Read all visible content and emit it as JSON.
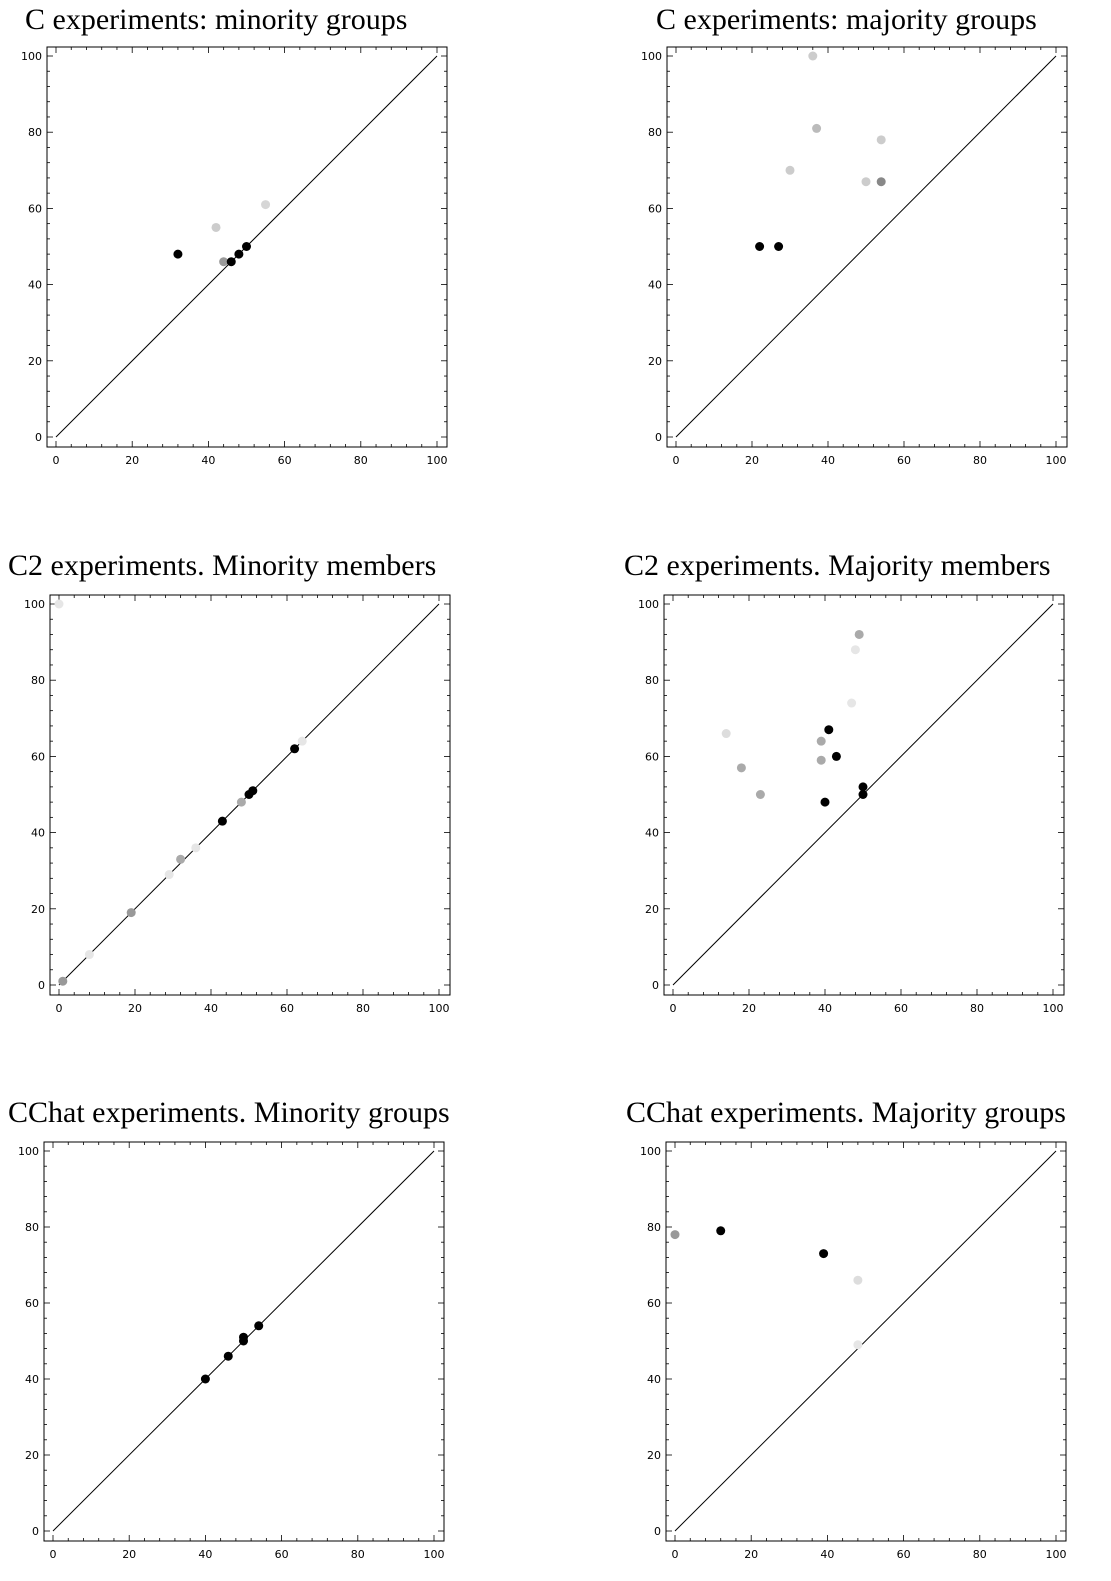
{
  "charts": [
    {
      "title": "C experiments: minority groups",
      "chart_data": {
        "type": "scatter",
        "xlim": [
          0,
          100
        ],
        "ylim": [
          0,
          100
        ],
        "xticks": [
          "0",
          "20",
          "40",
          "60",
          "80",
          "100"
        ],
        "yticks": [
          "0",
          "20",
          "40",
          "60",
          "80",
          "100"
        ],
        "reference_line": "y = x",
        "points": [
          {
            "x": 32,
            "y": 48,
            "color": "#000000"
          },
          {
            "x": 42,
            "y": 55,
            "color": "#cccccc"
          },
          {
            "x": 44,
            "y": 46,
            "color": "#999999"
          },
          {
            "x": 46,
            "y": 46,
            "color": "#000000"
          },
          {
            "x": 48,
            "y": 48,
            "color": "#000000"
          },
          {
            "x": 50,
            "y": 50,
            "color": "#000000"
          },
          {
            "x": 55,
            "y": 61,
            "color": "#d6d6d6"
          }
        ]
      }
    },
    {
      "title": "C experiments: majority groups",
      "chart_data": {
        "type": "scatter",
        "xlim": [
          0,
          100
        ],
        "ylim": [
          0,
          100
        ],
        "xticks": [
          "0",
          "20",
          "40",
          "60",
          "80",
          "100"
        ],
        "yticks": [
          "0",
          "20",
          "40",
          "60",
          "80",
          "100"
        ],
        "reference_line": "y = x",
        "points": [
          {
            "x": 22,
            "y": 50,
            "color": "#000000"
          },
          {
            "x": 27,
            "y": 50,
            "color": "#000000"
          },
          {
            "x": 30,
            "y": 70,
            "color": "#cccccc"
          },
          {
            "x": 36,
            "y": 100,
            "color": "#cccccc"
          },
          {
            "x": 37,
            "y": 81,
            "color": "#bbbbbb"
          },
          {
            "x": 50,
            "y": 67,
            "color": "#cccccc"
          },
          {
            "x": 54,
            "y": 67,
            "color": "#888888"
          },
          {
            "x": 54,
            "y": 78,
            "color": "#cccccc"
          }
        ]
      }
    },
    {
      "title": "C2 experiments. Minority members",
      "chart_data": {
        "type": "scatter",
        "xlim": [
          0,
          100
        ],
        "ylim": [
          0,
          100
        ],
        "xticks": [
          "0",
          "20",
          "40",
          "60",
          "80",
          "100"
        ],
        "yticks": [
          "0",
          "20",
          "40",
          "60",
          "80",
          "100"
        ],
        "reference_line": "y = x",
        "points": [
          {
            "x": 0,
            "y": 100,
            "color": "#e6e6e6"
          },
          {
            "x": 1,
            "y": 1,
            "color": "#999999"
          },
          {
            "x": 8,
            "y": 8,
            "color": "#e6e6e6"
          },
          {
            "x": 19,
            "y": 19,
            "color": "#999999"
          },
          {
            "x": 29,
            "y": 29,
            "color": "#e6e6e6"
          },
          {
            "x": 32,
            "y": 33,
            "color": "#aaaaaa"
          },
          {
            "x": 36,
            "y": 36,
            "color": "#e6e6e6"
          },
          {
            "x": 43,
            "y": 43,
            "color": "#000000"
          },
          {
            "x": 48,
            "y": 48,
            "color": "#aaaaaa"
          },
          {
            "x": 50,
            "y": 50,
            "color": "#000000"
          },
          {
            "x": 51,
            "y": 51,
            "color": "#000000"
          },
          {
            "x": 62,
            "y": 62,
            "color": "#000000"
          },
          {
            "x": 64,
            "y": 64,
            "color": "#e6e6e6"
          }
        ]
      }
    },
    {
      "title": "C2 experiments. Majority members",
      "chart_data": {
        "type": "scatter",
        "xlim": [
          0,
          100
        ],
        "ylim": [
          0,
          100
        ],
        "xticks": [
          "0",
          "20",
          "40",
          "60",
          "80",
          "100"
        ],
        "yticks": [
          "0",
          "20",
          "40",
          "60",
          "80",
          "100"
        ],
        "reference_line": "y = x",
        "points": [
          {
            "x": 14,
            "y": 66,
            "color": "#dddddd"
          },
          {
            "x": 18,
            "y": 57,
            "color": "#aaaaaa"
          },
          {
            "x": 23,
            "y": 50,
            "color": "#aaaaaa"
          },
          {
            "x": 39,
            "y": 64,
            "color": "#aaaaaa"
          },
          {
            "x": 39,
            "y": 59,
            "color": "#aaaaaa"
          },
          {
            "x": 40,
            "y": 48,
            "color": "#000000"
          },
          {
            "x": 41,
            "y": 67,
            "color": "#000000"
          },
          {
            "x": 43,
            "y": 60,
            "color": "#000000"
          },
          {
            "x": 47,
            "y": 74,
            "color": "#e6e6e6"
          },
          {
            "x": 48,
            "y": 88,
            "color": "#e6e6e6"
          },
          {
            "x": 49,
            "y": 92,
            "color": "#aaaaaa"
          },
          {
            "x": 50,
            "y": 52,
            "color": "#000000"
          },
          {
            "x": 50,
            "y": 50,
            "color": "#000000"
          }
        ]
      }
    },
    {
      "title": "CChat experiments. Minority groups",
      "chart_data": {
        "type": "scatter",
        "xlim": [
          0,
          100
        ],
        "ylim": [
          0,
          100
        ],
        "xticks": [
          "0",
          "20",
          "40",
          "60",
          "80",
          "100"
        ],
        "yticks": [
          "0",
          "20",
          "40",
          "60",
          "80",
          "100"
        ],
        "reference_line": "y = x",
        "points": [
          {
            "x": 40,
            "y": 40,
            "color": "#000000"
          },
          {
            "x": 46,
            "y": 46,
            "color": "#000000"
          },
          {
            "x": 50,
            "y": 50,
            "color": "#000000"
          },
          {
            "x": 50,
            "y": 51,
            "color": "#000000"
          },
          {
            "x": 54,
            "y": 54,
            "color": "#000000"
          }
        ]
      }
    },
    {
      "title": "CChat experiments. Majority groups",
      "chart_data": {
        "type": "scatter",
        "xlim": [
          0,
          100
        ],
        "ylim": [
          0,
          100
        ],
        "xticks": [
          "0",
          "20",
          "40",
          "60",
          "80",
          "100"
        ],
        "yticks": [
          "0",
          "20",
          "40",
          "60",
          "80",
          "100"
        ],
        "reference_line": "y = x",
        "points": [
          {
            "x": 0,
            "y": 78,
            "color": "#999999"
          },
          {
            "x": 12,
            "y": 79,
            "color": "#000000"
          },
          {
            "x": 39,
            "y": 73,
            "color": "#000000"
          },
          {
            "x": 48,
            "y": 66,
            "color": "#dddddd"
          },
          {
            "x": 48,
            "y": 49,
            "color": "#e6e6e6"
          }
        ]
      }
    }
  ]
}
